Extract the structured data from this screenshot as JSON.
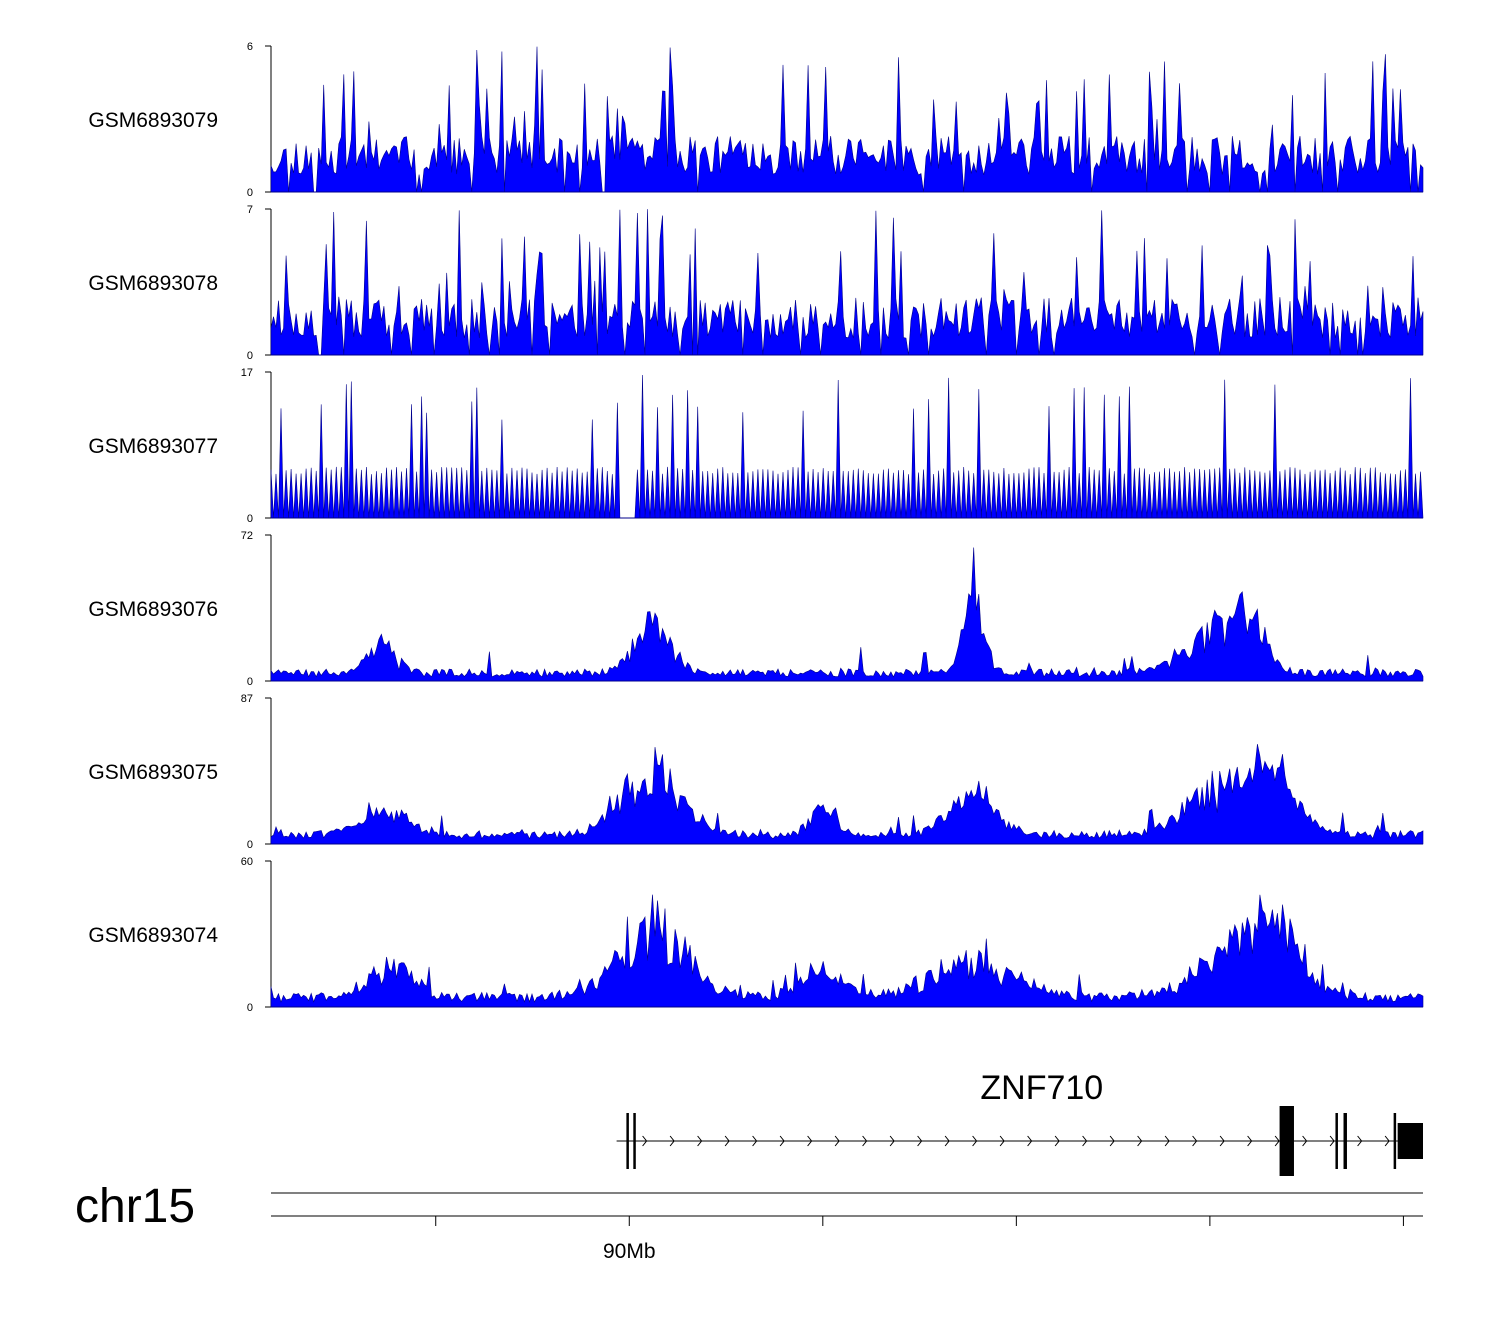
{
  "chart_data": {
    "type": "area",
    "title": "",
    "chromosome": "chr15",
    "fill_color": "#0000ff",
    "outline_color": "#00008b",
    "tracks": [
      {
        "name": "GSM6893079",
        "ymin": 0,
        "ymax": 6,
        "baseline": 0.7,
        "noise": 1.6,
        "profile": "sparse",
        "seed": 11,
        "peaks": []
      },
      {
        "name": "GSM6893078",
        "ymin": 0,
        "ymax": 7,
        "baseline": 0.8,
        "noise": 2.0,
        "profile": "sparse",
        "seed": 23,
        "peaks": []
      },
      {
        "name": "GSM6893077",
        "ymin": 0,
        "ymax": 17,
        "baseline": 0,
        "noise": 0,
        "profile": "triangles",
        "seed": 37,
        "peaks": []
      },
      {
        "name": "GSM6893076",
        "ymin": 0,
        "ymax": 72,
        "baseline": 2,
        "noise": 4,
        "profile": "peaks",
        "seed": 41,
        "peaks": [
          [
            0.095,
            0.012,
            14
          ],
          [
            0.33,
            0.016,
            22
          ],
          [
            0.61,
            0.008,
            40
          ],
          [
            0.82,
            0.025,
            20
          ],
          [
            0.85,
            0.012,
            22
          ]
        ]
      },
      {
        "name": "GSM6893075",
        "ymin": 0,
        "ymax": 87,
        "baseline": 3,
        "noise": 5,
        "profile": "peaks",
        "seed": 53,
        "peaks": [
          [
            0.1,
            0.02,
            14
          ],
          [
            0.33,
            0.025,
            36
          ],
          [
            0.48,
            0.012,
            14
          ],
          [
            0.61,
            0.02,
            24
          ],
          [
            0.83,
            0.035,
            26
          ],
          [
            0.87,
            0.02,
            24
          ]
        ]
      },
      {
        "name": "GSM6893074",
        "ymin": 0,
        "ymax": 60,
        "baseline": 2,
        "noise": 4,
        "profile": "peaks",
        "seed": 67,
        "peaks": [
          [
            0.105,
            0.02,
            12
          ],
          [
            0.33,
            0.03,
            28
          ],
          [
            0.48,
            0.02,
            10
          ],
          [
            0.61,
            0.035,
            14
          ],
          [
            0.84,
            0.035,
            18
          ],
          [
            0.87,
            0.02,
            22
          ]
        ]
      }
    ],
    "gene": {
      "name": "ZNF710",
      "strand": "+",
      "start_frac": 0.3,
      "end_frac": 1.0,
      "exons": [
        [
          0.3085,
          0.31
        ],
        [
          0.3145,
          0.315
        ],
        [
          0.8755,
          0.888
        ],
        [
          0.924,
          0.926
        ],
        [
          0.931,
          0.934
        ],
        [
          0.9745,
          0.976
        ],
        [
          0.978,
          1.0
        ]
      ]
    },
    "xaxis": {
      "tick_fracs": [
        0.143,
        0.311,
        0.479,
        0.647,
        0.815,
        0.983
      ],
      "labels": [
        {
          "frac": 0.311,
          "text": "90Mb"
        }
      ]
    }
  }
}
